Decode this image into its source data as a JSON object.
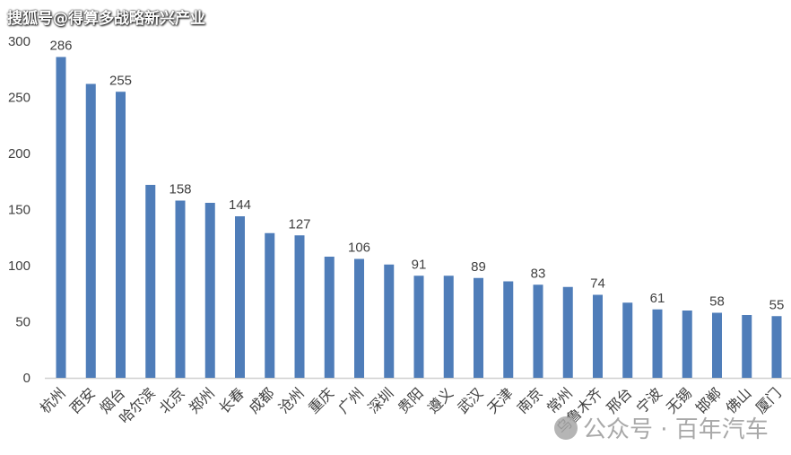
{
  "chart_data": {
    "type": "bar",
    "title": "",
    "xlabel": "",
    "ylabel": "",
    "ylim": [
      0,
      300
    ],
    "yticks": [
      0,
      50,
      100,
      150,
      200,
      250,
      300
    ],
    "grid": false,
    "bar_color": "#4F7DB9",
    "categories": [
      "杭州",
      "西安",
      "烟台",
      "哈尔滨",
      "北京",
      "郑州",
      "长春",
      "成都",
      "沧州",
      "重庆",
      "广州",
      "深圳",
      "贵阳",
      "遵义",
      "武汉",
      "天津",
      "南京",
      "常州",
      "乌鲁木齐",
      "邢台",
      "宁波",
      "无锡",
      "邯郸",
      "佛山",
      "厦门"
    ],
    "values": [
      286,
      262,
      255,
      172,
      158,
      156,
      144,
      129,
      127,
      108,
      106,
      101,
      91,
      91,
      89,
      86,
      83,
      81,
      74,
      67,
      61,
      60,
      58,
      56,
      55
    ],
    "data_labels": [
      286,
      null,
      255,
      null,
      158,
      null,
      144,
      null,
      127,
      null,
      106,
      null,
      91,
      null,
      89,
      null,
      83,
      null,
      74,
      null,
      61,
      null,
      58,
      null,
      55
    ]
  },
  "watermarks": {
    "top": "搜狐号@得算多战略新兴产业",
    "bottom": "公众号 · 百年汽车"
  }
}
